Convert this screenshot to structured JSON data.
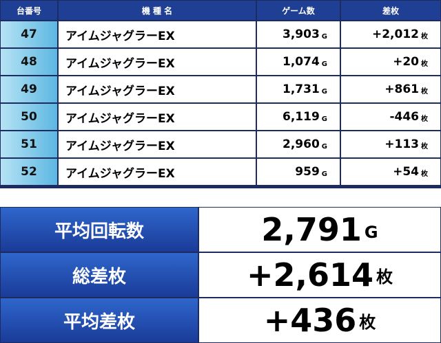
{
  "table": {
    "header": [
      "台番号",
      "機 種 名",
      "ゲーム数",
      "差枚"
    ],
    "rows": [
      {
        "no": "47",
        "model": "アイムジャグラーEX",
        "games": "3,903",
        "games_unit": "G",
        "diff": "+2,012",
        "diff_unit": "枚"
      },
      {
        "no": "48",
        "model": "アイムジャグラーEX",
        "games": "1,074",
        "games_unit": "G",
        "diff": "+20",
        "diff_unit": "枚"
      },
      {
        "no": "49",
        "model": "アイムジャグラーEX",
        "games": "1,731",
        "games_unit": "G",
        "diff": "+861",
        "diff_unit": "枚"
      },
      {
        "no": "50",
        "model": "アイムジャグラーEX",
        "games": "6,119",
        "games_unit": "G",
        "diff": "-446",
        "diff_unit": "枚"
      },
      {
        "no": "51",
        "model": "アイムジャグラーEX",
        "games": "2,960",
        "games_unit": "G",
        "diff": "+113",
        "diff_unit": "枚"
      },
      {
        "no": "52",
        "model": "アイムジャグラーEX",
        "games": "959",
        "games_unit": "G",
        "diff": "+54",
        "diff_unit": "枚"
      }
    ]
  },
  "summary": [
    {
      "label": "平均回転数",
      "value": "2,791",
      "unit": "G"
    },
    {
      "label": "総差枚",
      "value": "+2,614",
      "unit": "枚"
    },
    {
      "label": "平均差枚",
      "value": "+436",
      "unit": "枚"
    }
  ]
}
